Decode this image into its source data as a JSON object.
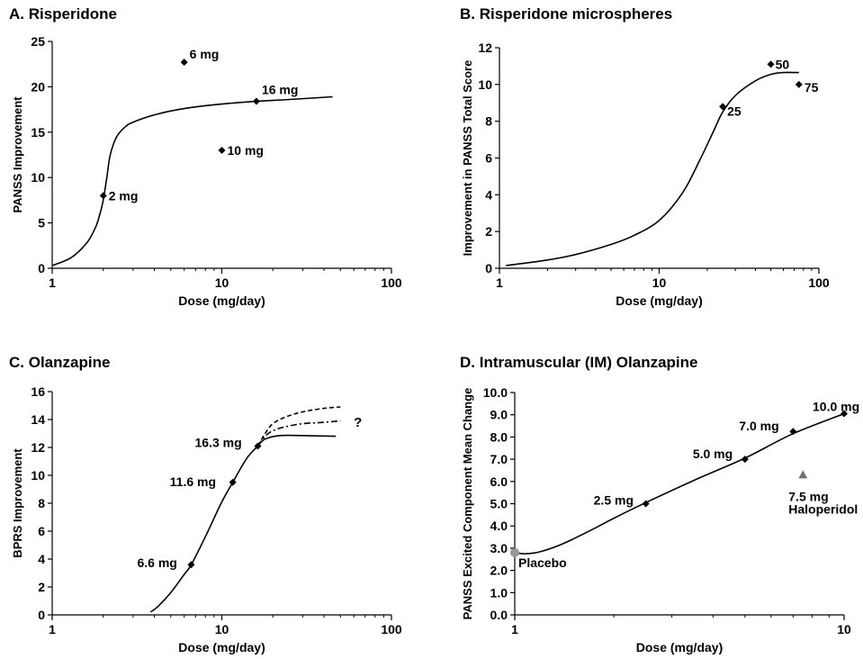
{
  "chart_data": [
    {
      "type": "scatter",
      "title": "A. Risperidone",
      "xlabel": "Dose (mg/day)",
      "ylabel": "PANSS Improvement",
      "xscale": "log",
      "xlim": [
        1,
        100
      ],
      "ylim": [
        0,
        25
      ],
      "xticks": [
        1,
        10,
        100
      ],
      "xtick_labels": [
        "1",
        "10",
        "100"
      ],
      "yticks": [
        0,
        5,
        10,
        15,
        20,
        25
      ],
      "ytick_labels": [
        "0",
        "5",
        "10",
        "15",
        "20",
        "25"
      ],
      "grid": false,
      "points": [
        {
          "x": 2,
          "y": 8,
          "label": "2 mg"
        },
        {
          "x": 6,
          "y": 22.7,
          "label": "6 mg"
        },
        {
          "x": 10,
          "y": 13,
          "label": "10 mg"
        },
        {
          "x": 16,
          "y": 18.4,
          "label": "16 mg"
        }
      ],
      "curves": [
        {
          "style": "solid",
          "x": [
            1,
            1.3,
            1.6,
            1.8,
            1.9,
            2.0,
            2.1,
            2.2,
            2.4,
            2.7,
            3,
            4,
            6,
            10,
            16,
            25,
            45
          ],
          "y": [
            0.3,
            1.2,
            2.8,
            4.5,
            5.8,
            7.5,
            10,
            12.5,
            14.5,
            15.6,
            16.1,
            16.9,
            17.6,
            18.1,
            18.4,
            18.6,
            18.9
          ]
        }
      ]
    },
    {
      "type": "scatter",
      "title": "B. Risperidone microspheres",
      "xlabel": "Dose (mg/day)",
      "ylabel": "Improvement in PANSS Total Score",
      "xscale": "log",
      "xlim": [
        1,
        100
      ],
      "ylim": [
        0,
        12
      ],
      "xticks": [
        1,
        10,
        100
      ],
      "xtick_labels": [
        "1",
        "10",
        "100"
      ],
      "yticks": [
        0,
        2,
        4,
        6,
        8,
        10,
        12
      ],
      "ytick_labels": [
        "0",
        "2",
        "4",
        "6",
        "8",
        "10",
        "12"
      ],
      "grid": false,
      "points": [
        {
          "x": 25,
          "y": 8.8,
          "label": "25"
        },
        {
          "x": 50,
          "y": 11.1,
          "label": "50"
        },
        {
          "x": 75,
          "y": 10,
          "label": "75"
        }
      ],
      "curves": [
        {
          "style": "solid",
          "x": [
            1.1,
            2,
            3,
            5,
            7,
            10,
            14,
            18,
            22,
            25,
            30,
            40,
            50,
            60,
            75
          ],
          "y": [
            0.15,
            0.45,
            0.75,
            1.3,
            1.8,
            2.6,
            4.1,
            5.9,
            7.5,
            8.5,
            9.4,
            10.2,
            10.55,
            10.65,
            10.65
          ]
        }
      ]
    },
    {
      "type": "scatter",
      "title": "C. Olanzapine",
      "xlabel": "Dose (mg/day)",
      "ylabel": "BPRS Improvement",
      "xscale": "log",
      "xlim": [
        1,
        100
      ],
      "ylim": [
        0,
        16
      ],
      "xticks": [
        1,
        10,
        100
      ],
      "xtick_labels": [
        "1",
        "10",
        "100"
      ],
      "yticks": [
        0,
        2,
        4,
        6,
        8,
        10,
        12,
        14,
        16
      ],
      "ytick_labels": [
        "0",
        "2",
        "4",
        "6",
        "8",
        "10",
        "12",
        "14",
        "16"
      ],
      "grid": false,
      "points": [
        {
          "x": 6.6,
          "y": 3.6,
          "label": "6.6 mg"
        },
        {
          "x": 11.6,
          "y": 9.5,
          "label": "11.6 mg"
        },
        {
          "x": 16.3,
          "y": 12.1,
          "label": "16.3 mg"
        }
      ],
      "curves": [
        {
          "style": "solid",
          "x": [
            3.8,
            4.2,
            5,
            6,
            6.6,
            8,
            10,
            11.6,
            14,
            16.3,
            18,
            22,
            30,
            47
          ],
          "y": [
            0.2,
            0.6,
            1.6,
            2.9,
            3.6,
            5.6,
            8.1,
            9.5,
            11.2,
            12.1,
            12.6,
            12.85,
            12.85,
            12.8
          ]
        },
        {
          "style": "dashed",
          "x": [
            16.3,
            18,
            20,
            24,
            30,
            40,
            50
          ],
          "y": [
            12.1,
            13.0,
            13.7,
            14.2,
            14.55,
            14.8,
            14.9
          ]
        },
        {
          "style": "dashdot",
          "x": [
            16.3,
            18,
            20,
            24,
            30,
            40,
            50
          ],
          "y": [
            12.1,
            12.8,
            13.2,
            13.5,
            13.7,
            13.8,
            13.9
          ]
        }
      ],
      "annotations": [
        {
          "x": 60,
          "y": 13.8,
          "text": "?"
        }
      ]
    },
    {
      "type": "scatter",
      "title": "D. Intramuscular (IM) Olanzapine",
      "xlabel": "Dose (mg/day)",
      "ylabel": "PANSS Excited Component Mean Change",
      "xscale": "log",
      "xlim": [
        1,
        10
      ],
      "ylim": [
        0,
        10
      ],
      "xticks": [
        1,
        10
      ],
      "xtick_labels": [
        "1",
        "10"
      ],
      "yticks": [
        0,
        1,
        2,
        3,
        4,
        5,
        6,
        7,
        8,
        9,
        10
      ],
      "ytick_labels": [
        "0.0",
        "1.0",
        "2.0",
        "3.0",
        "4.0",
        "5.0",
        "6.0",
        "7.0",
        "8.0",
        "9.0",
        "10.0"
      ],
      "grid": false,
      "points": [
        {
          "x": 1,
          "y": 2.8,
          "label": "Placebo",
          "marker": "circle",
          "color": "#999999"
        },
        {
          "x": 2.5,
          "y": 5.0,
          "label": "2.5 mg"
        },
        {
          "x": 5.0,
          "y": 7.0,
          "label": "5.0 mg"
        },
        {
          "x": 7.0,
          "y": 8.25,
          "label": "7.0 mg"
        },
        {
          "x": 10.0,
          "y": 9.05,
          "label": "10.0 mg"
        },
        {
          "x": 7.5,
          "y": 6.3,
          "label": "7.5 mg",
          "label2": "Haloperidol",
          "marker": "triangle",
          "color": "#707070"
        }
      ],
      "curves": [
        {
          "style": "solid",
          "x": [
            1,
            1.08,
            1.2,
            1.4,
            1.7,
            2.0,
            2.5,
            3.5,
            5,
            7,
            10
          ],
          "y": [
            2.8,
            2.75,
            2.85,
            3.2,
            3.8,
            4.35,
            5.05,
            6.05,
            7.05,
            8.15,
            9.05
          ]
        }
      ]
    }
  ]
}
